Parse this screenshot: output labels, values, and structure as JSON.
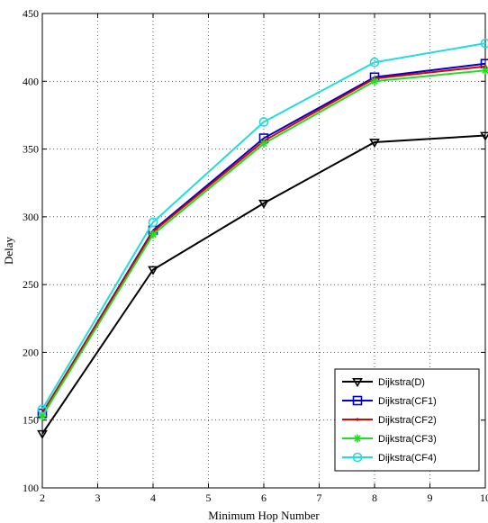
{
  "chart_data": {
    "type": "line",
    "title": "",
    "xlabel": "Minimum Hop Number",
    "ylabel": "Delay",
    "xlim": [
      2,
      10
    ],
    "ylim": [
      100,
      450
    ],
    "xticks": [
      2,
      3,
      4,
      5,
      6,
      7,
      8,
      9,
      10
    ],
    "yticks": [
      100,
      150,
      200,
      250,
      300,
      350,
      400,
      450
    ],
    "grid": true,
    "legend_position": "bottom-right",
    "x": [
      2,
      4,
      6,
      8,
      10
    ],
    "series": [
      {
        "name": "Dijkstra(D)",
        "color": "#000000",
        "marker": "triangle-down",
        "values": [
          140,
          261,
          310,
          355,
          360
        ]
      },
      {
        "name": "Dijkstra(CF1)",
        "color": "#0000cc",
        "marker": "square",
        "values": [
          155,
          290,
          358,
          403,
          413
        ]
      },
      {
        "name": "Dijkstra(CF2)",
        "color": "#dd0000",
        "marker": "dot",
        "values": [
          155,
          289,
          356,
          402,
          411
        ]
      },
      {
        "name": "Dijkstra(CF3)",
        "color": "#22dd22",
        "marker": "star",
        "values": [
          153,
          287,
          354,
          400,
          408
        ]
      },
      {
        "name": "Dijkstra(CF4)",
        "color": "#22dddd",
        "marker": "circle",
        "values": [
          158,
          296,
          370,
          414,
          428
        ]
      }
    ]
  }
}
